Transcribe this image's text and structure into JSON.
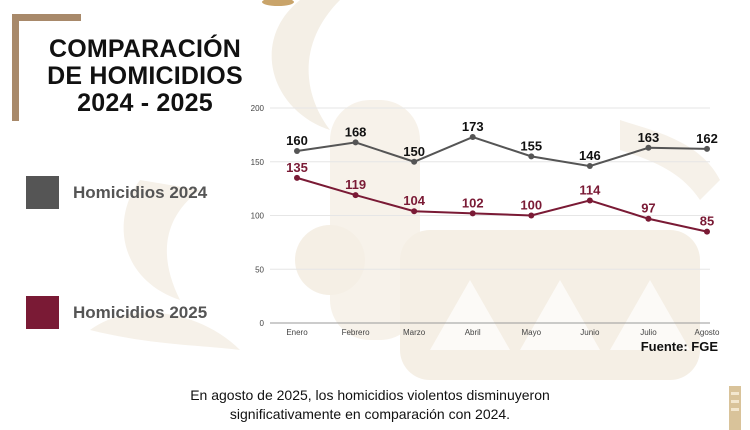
{
  "title": {
    "line1": "COMPARACIÓN",
    "line2": "DE HOMICIDIOS",
    "line3": "2024 - 2025"
  },
  "legend": [
    {
      "label": "Homicidios 2024",
      "color": "#555555"
    },
    {
      "label": "Homicidios 2025",
      "color": "#7a1a35"
    }
  ],
  "source": "Fuente: FGE",
  "caption": {
    "line1": "En agosto de 2025, los homicidios violentos disminuyeron",
    "line2": "significativamente en comparación con 2024."
  },
  "colors": {
    "accent_gold": "#a8896a",
    "background_motif": "#f3ede3"
  },
  "chart_data": {
    "type": "line",
    "categories": [
      "Enero",
      "Febrero",
      "Marzo",
      "Abril",
      "Mayo",
      "Junio",
      "Julio",
      "Agosto"
    ],
    "series": [
      {
        "name": "Homicidios 2024",
        "values": [
          160,
          168,
          150,
          173,
          155,
          146,
          163,
          162
        ],
        "color": "#555555"
      },
      {
        "name": "Homicidios 2025",
        "values": [
          135,
          119,
          104,
          102,
          100,
          114,
          97,
          85
        ],
        "color": "#7a1a35"
      }
    ],
    "yticks": [
      0,
      50,
      100,
      150,
      200
    ],
    "ylim": [
      0,
      200
    ],
    "grid": true,
    "legend_position": "left"
  }
}
